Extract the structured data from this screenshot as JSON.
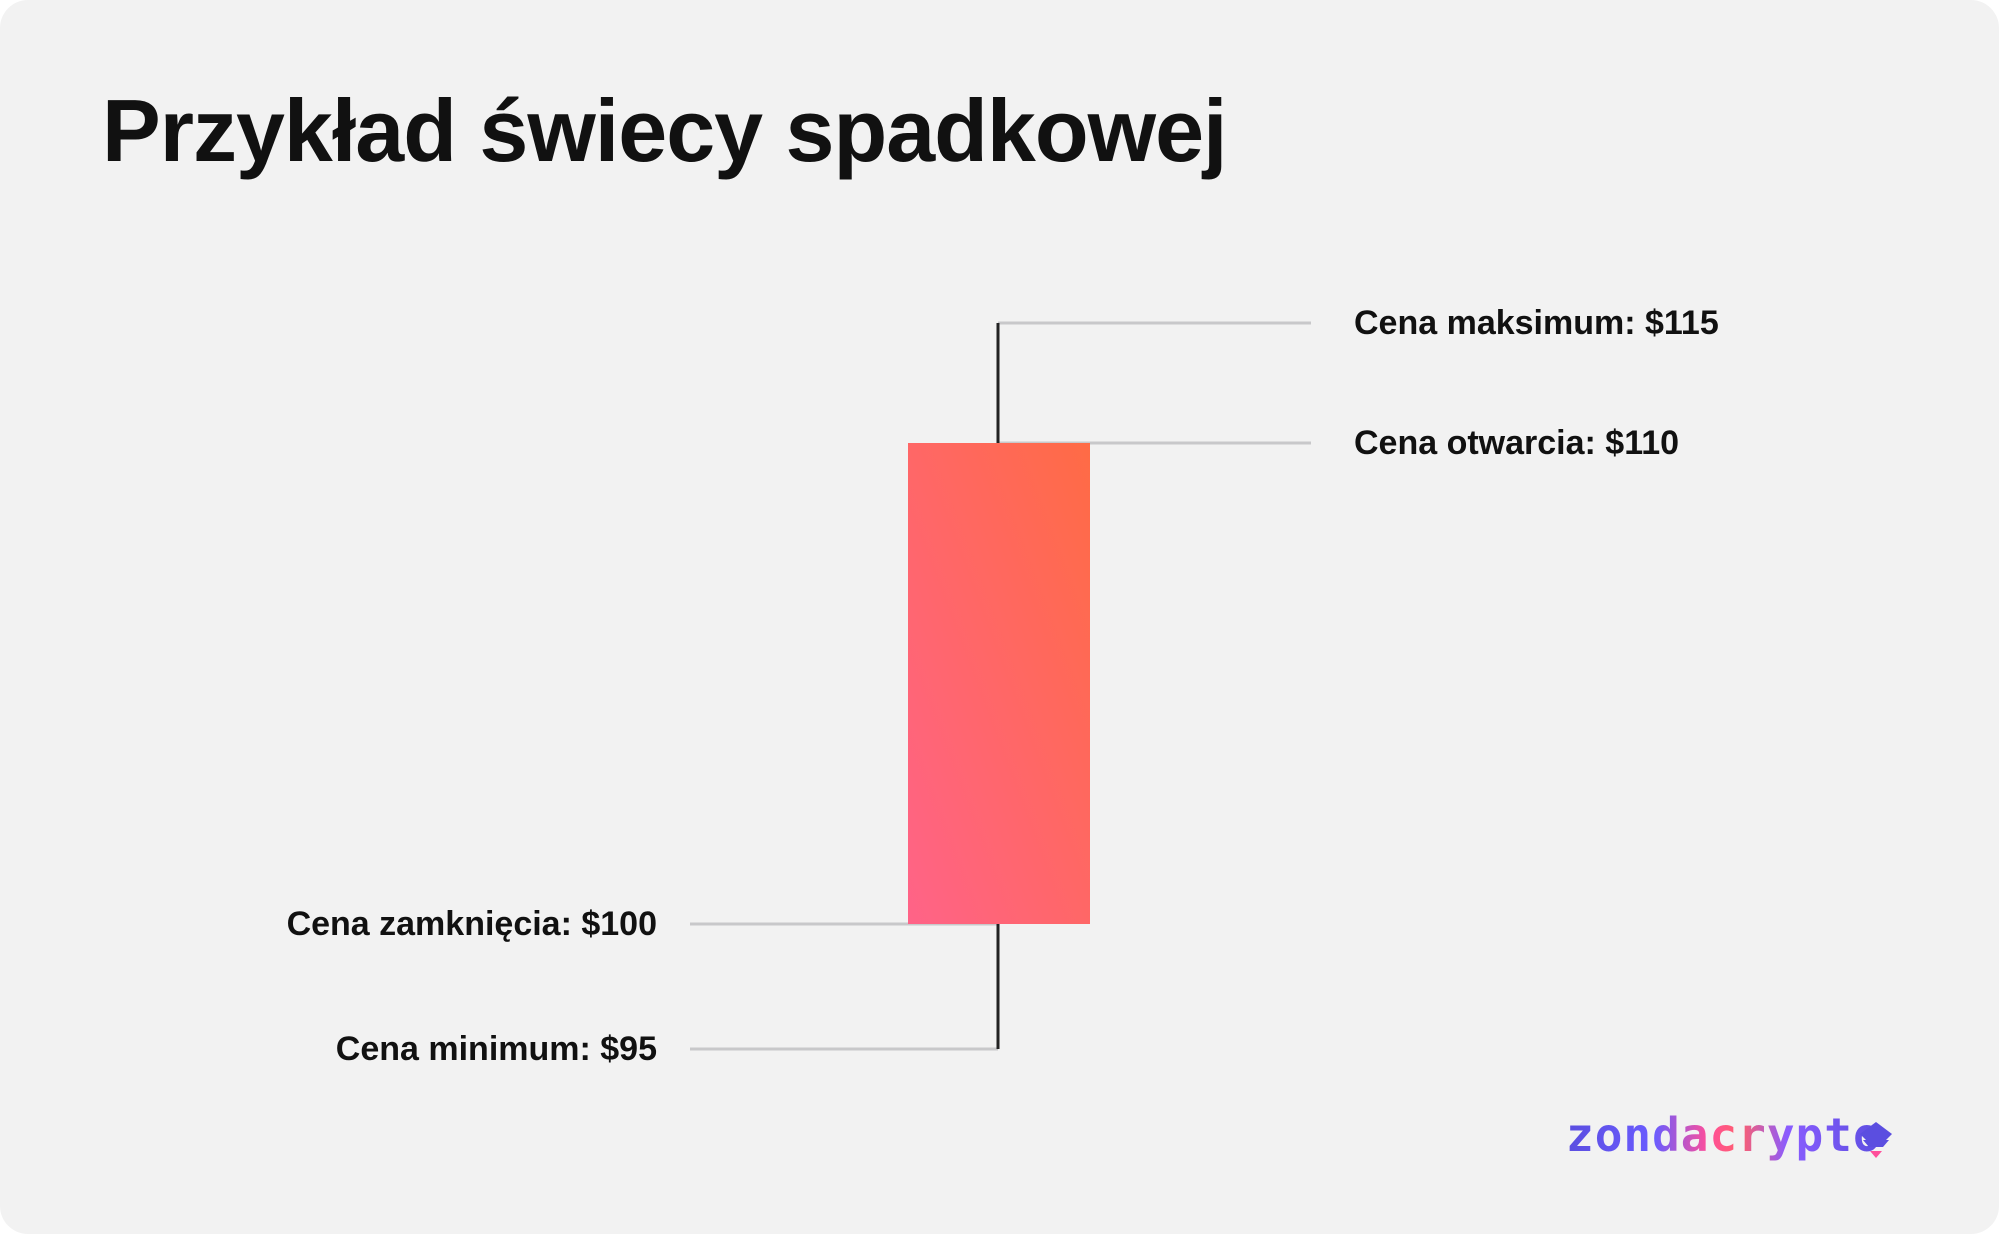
{
  "chart_data": {
    "type": "candlestick",
    "title": "Przykład świecy spadkowej",
    "candle": {
      "open": 110,
      "high": 115,
      "low": 95,
      "close": 100,
      "direction": "down"
    },
    "annotations": [
      {
        "key": "high",
        "text": "Cena maksimum: $115",
        "side": "right"
      },
      {
        "key": "open",
        "text": "Cena otwarcia: $110",
        "side": "right"
      },
      {
        "key": "close",
        "text": "Cena zamknięcia: $100",
        "side": "left"
      },
      {
        "key": "low",
        "text": "Cena minimum: $95",
        "side": "left"
      }
    ],
    "colors": {
      "body_start": "#ff6388",
      "body_end": "#ff6b45",
      "wick": "#222222",
      "leader": "#c8c8ca",
      "background": "#f2f2f2"
    }
  },
  "brand": {
    "logo_text": "zondacrypto",
    "logo_icon": "zonda-arrow-icon"
  }
}
